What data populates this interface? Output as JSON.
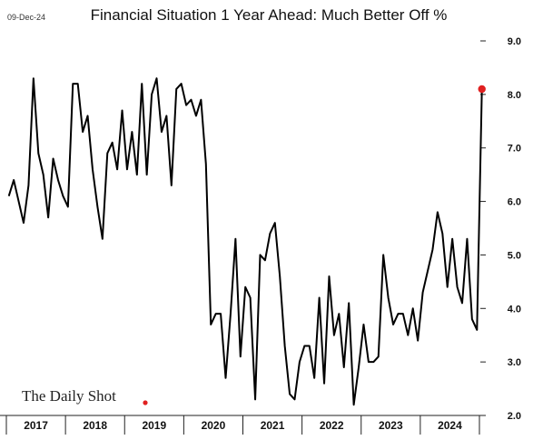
{
  "header": {
    "date": "09-Dec-24"
  },
  "branding": {
    "name": "The Daily Shot",
    "dot_color": "#e02020"
  },
  "chart_data": {
    "type": "line",
    "title": "Financial Situation 1 Year Ahead: Much Better Off %",
    "xlabel": "",
    "ylabel": "",
    "ylim": [
      2.0,
      9.0
    ],
    "yticks": [
      "9.0",
      "8.0",
      "7.0",
      "6.0",
      "5.0",
      "4.0",
      "3.0",
      "2.0"
    ],
    "year_labels": [
      "2017",
      "2018",
      "2019",
      "2020",
      "2021",
      "2022",
      "2023",
      "2024"
    ],
    "x_start": "2017-01",
    "x_end": "2024-12",
    "grid": false,
    "line_color": "#000000",
    "last_point_color": "#e02020",
    "series": [
      {
        "values": [
          6.1,
          6.4,
          6.0,
          5.6,
          6.3,
          8.3,
          6.9,
          6.5,
          5.7,
          6.8,
          6.4,
          6.1,
          5.9,
          8.2,
          8.2,
          7.3,
          7.6,
          6.6,
          5.9,
          5.3,
          6.9,
          7.1,
          6.6,
          7.7,
          6.6,
          7.3,
          6.5,
          8.2,
          6.5,
          8.0,
          8.3,
          7.3,
          7.6,
          6.3,
          8.1,
          8.2,
          7.8,
          7.9,
          7.6,
          7.9,
          6.7,
          3.7,
          3.9,
          3.9,
          2.7,
          3.9,
          5.3,
          3.1,
          4.4,
          4.2,
          2.3,
          5.0,
          4.9,
          5.4,
          5.6,
          4.6,
          3.3,
          2.4,
          2.3,
          3.0,
          3.3,
          3.3,
          2.7,
          4.2,
          2.6,
          4.6,
          3.5,
          3.9,
          2.9,
          4.1,
          2.2,
          2.9,
          3.7,
          3.0,
          3.0,
          3.1,
          5.0,
          4.2,
          3.7,
          3.9,
          3.9,
          3.5,
          4.0,
          3.4,
          4.3,
          4.7,
          5.1,
          5.8,
          5.4,
          4.4,
          5.3,
          4.4,
          4.1,
          5.3,
          3.8,
          3.6,
          8.1
        ]
      }
    ]
  }
}
